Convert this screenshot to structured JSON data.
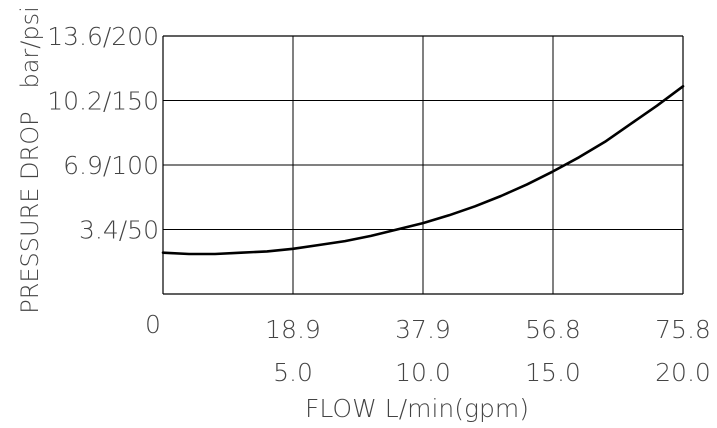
{
  "chart_data": {
    "type": "line",
    "title": "",
    "xlabel": "FLOW L/min(gpm)",
    "ylabel": "PRESSURE DROP   bar/psi",
    "origin_label": "0",
    "x_ticks_lmin": [
      "18.9",
      "37.9",
      "56.8",
      "75.8"
    ],
    "x_ticks_gpm": [
      "5.0",
      "10.0",
      "15.0",
      "20.0"
    ],
    "y_ticks": [
      "3.4/50",
      "6.9/100",
      "10.2/150",
      "13.6/200"
    ],
    "xlim": [
      0,
      20
    ],
    "ylim": [
      0,
      200
    ],
    "x_unit": "gpm",
    "y_unit": "psi",
    "grid": true,
    "series": [
      {
        "name": "",
        "x": [
          0,
          1,
          2,
          3,
          4,
          5,
          6,
          7,
          8,
          9,
          10,
          11,
          12,
          13,
          14,
          15,
          16,
          17,
          18,
          19,
          20
        ],
        "y": [
          32,
          31,
          31,
          32,
          33,
          35,
          38,
          41,
          45,
          50,
          55,
          61,
          68,
          76,
          85,
          95,
          106,
          118,
          132,
          146,
          161
        ]
      }
    ]
  }
}
